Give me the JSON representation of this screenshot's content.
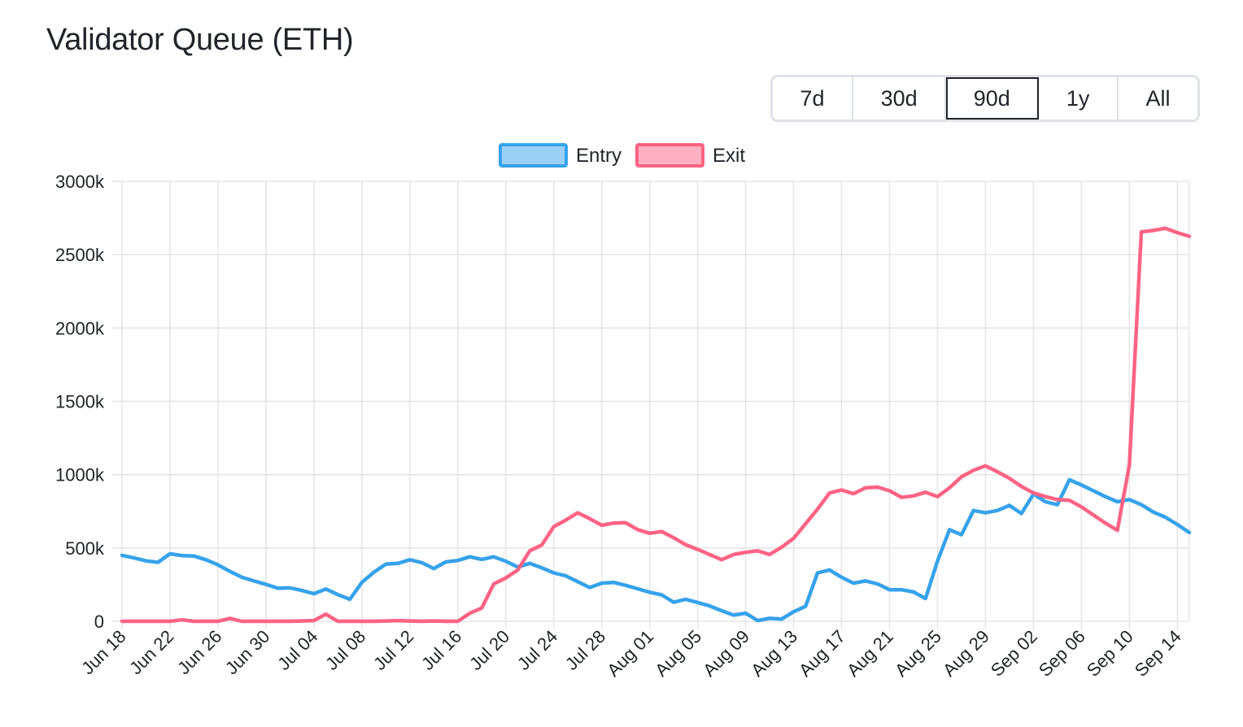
{
  "header": {
    "title": "Validator Queue (ETH)"
  },
  "range_selector": {
    "options": [
      "7d",
      "30d",
      "90d",
      "1y",
      "All"
    ],
    "selected": "90d"
  },
  "colors": {
    "entry": "#36a2eb",
    "exit": "#ff6384",
    "grid": "#e5e5e5",
    "text": "#212529"
  },
  "chart_data": {
    "type": "line",
    "x": [
      "Jun 18",
      "Jun 19",
      "Jun 20",
      "Jun 21",
      "Jun 22",
      "Jun 23",
      "Jun 24",
      "Jun 25",
      "Jun 26",
      "Jun 27",
      "Jun 28",
      "Jun 29",
      "Jun 30",
      "Jul 01",
      "Jul 02",
      "Jul 03",
      "Jul 04",
      "Jul 05",
      "Jul 06",
      "Jul 07",
      "Jul 08",
      "Jul 09",
      "Jul 10",
      "Jul 11",
      "Jul 12",
      "Jul 13",
      "Jul 14",
      "Jul 15",
      "Jul 16",
      "Jul 17",
      "Jul 18",
      "Jul 19",
      "Jul 20",
      "Jul 21",
      "Jul 22",
      "Jul 23",
      "Jul 24",
      "Jul 25",
      "Jul 26",
      "Jul 27",
      "Jul 28",
      "Jul 29",
      "Jul 30",
      "Jul 31",
      "Aug 01",
      "Aug 02",
      "Aug 03",
      "Aug 04",
      "Aug 05",
      "Aug 06",
      "Aug 07",
      "Aug 08",
      "Aug 09",
      "Aug 10",
      "Aug 11",
      "Aug 12",
      "Aug 13",
      "Aug 14",
      "Aug 15",
      "Aug 16",
      "Aug 17",
      "Aug 18",
      "Aug 19",
      "Aug 20",
      "Aug 21",
      "Aug 22",
      "Aug 23",
      "Aug 24",
      "Aug 25",
      "Aug 26",
      "Aug 27",
      "Aug 28",
      "Aug 29",
      "Aug 30",
      "Aug 31",
      "Sep 01",
      "Sep 02",
      "Sep 03",
      "Sep 04",
      "Sep 05",
      "Sep 06",
      "Sep 07",
      "Sep 08",
      "Sep 09",
      "Sep 10",
      "Sep 11",
      "Sep 12",
      "Sep 13",
      "Sep 14",
      "Sep 15"
    ],
    "x_tick_labels": [
      "Jun 18",
      "Jun 22",
      "Jun 26",
      "Jun 30",
      "Jul 04",
      "Jul 08",
      "Jul 12",
      "Jul 16",
      "Jul 20",
      "Jul 24",
      "Jul 28",
      "Aug 01",
      "Aug 05",
      "Aug 09",
      "Aug 13",
      "Aug 17",
      "Aug 21",
      "Aug 25",
      "Aug 29",
      "Sep 02",
      "Sep 06",
      "Sep 10",
      "Sep 14"
    ],
    "y_tick_labels": [
      "0",
      "500k",
      "1000k",
      "1500k",
      "2000k",
      "2500k",
      "3000k"
    ],
    "ylim": [
      0,
      3000
    ],
    "y_unit": "k ETH",
    "grid": true,
    "legend_position": "top-center",
    "series": [
      {
        "name": "Entry",
        "color": "#36a2eb",
        "values": [
          450,
          432,
          412,
          402,
          460,
          448,
          445,
          420,
          385,
          340,
          300,
          275,
          252,
          225,
          228,
          210,
          188,
          220,
          182,
          150,
          265,
          335,
          390,
          395,
          420,
          400,
          360,
          405,
          415,
          440,
          422,
          440,
          410,
          370,
          395,
          365,
          330,
          310,
          270,
          230,
          260,
          265,
          245,
          222,
          198,
          180,
          130,
          150,
          128,
          105,
          72,
          42,
          55,
          5,
          20,
          15,
          65,
          102,
          330,
          350,
          300,
          260,
          275,
          255,
          215,
          215,
          200,
          155,
          410,
          625,
          590,
          755,
          740,
          755,
          790,
          735,
          868,
          815,
          795,
          965,
          930,
          890,
          850,
          815,
          830,
          795,
          745,
          710,
          660,
          605
        ]
      },
      {
        "name": "Exit",
        "color": "#ff6384",
        "values": [
          0,
          0,
          0,
          0,
          0,
          10,
          0,
          0,
          0,
          20,
          0,
          0,
          0,
          0,
          0,
          2,
          5,
          48,
          0,
          0,
          0,
          0,
          2,
          5,
          2,
          0,
          2,
          0,
          0,
          55,
          90,
          255,
          295,
          350,
          480,
          520,
          645,
          690,
          740,
          700,
          655,
          670,
          672,
          625,
          600,
          612,
          570,
          522,
          490,
          455,
          420,
          455,
          470,
          480,
          455,
          505,
          565,
          665,
          765,
          875,
          895,
          870,
          910,
          915,
          890,
          845,
          855,
          880,
          850,
          910,
          985,
          1030,
          1060,
          1020,
          975,
          920,
          875,
          850,
          830,
          825,
          780,
          725,
          670,
          620,
          1065,
          2655,
          2665,
          2680,
          2650,
          2625
        ]
      }
    ]
  }
}
